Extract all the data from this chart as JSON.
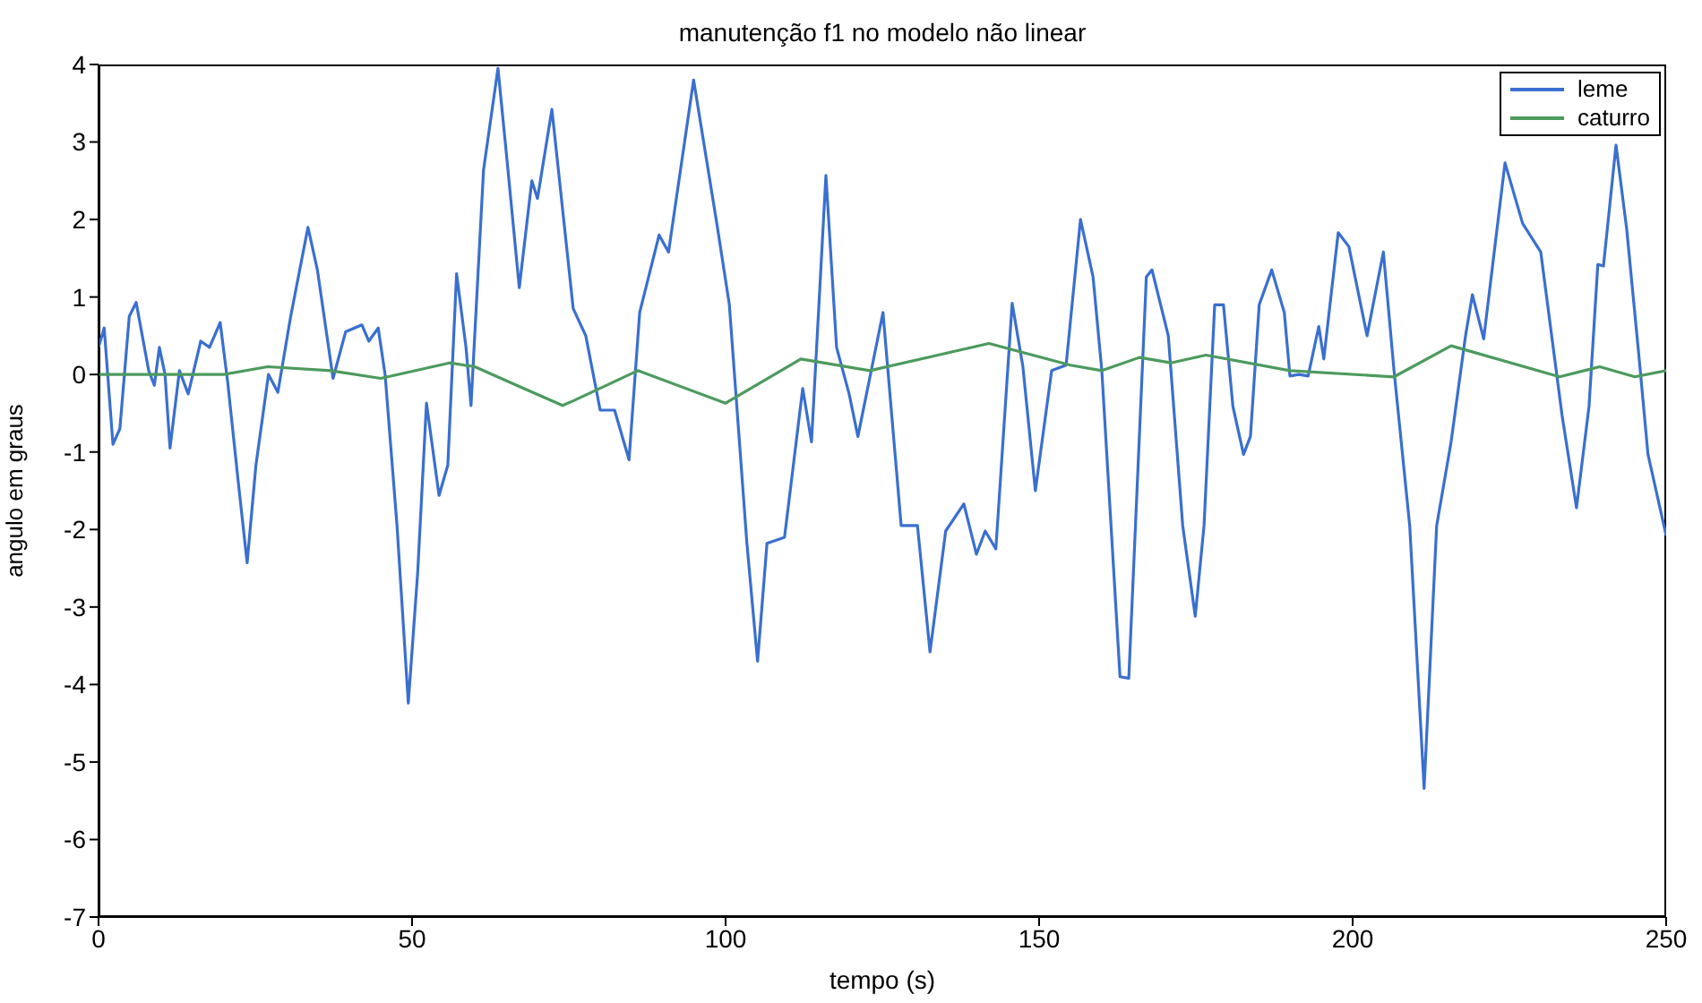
{
  "chart_data": {
    "type": "line",
    "title": "manutenção f1 no modelo não linear",
    "xlabel": "tempo (s)",
    "ylabel": "angulo em graus",
    "xlim": [
      0,
      250
    ],
    "xticks": [
      0,
      50,
      100,
      150,
      200,
      250
    ],
    "ylim": [
      -7,
      4
    ],
    "yticks": [
      -7,
      -6,
      -5,
      -4,
      -3,
      -2,
      -1,
      0,
      1,
      2,
      3,
      4
    ],
    "legend": "top right",
    "grid": false,
    "marker": "none",
    "line_style": "solid",
    "series": [
      {
        "name": "leme",
        "color": "#3a6fd0",
        "x": [
          0,
          0.9,
          2.3,
          3.4,
          4.9,
          6,
          8,
          8.9,
          9.7,
          10.6,
          11.4,
          12.9,
          14.3,
          16.3,
          17.7,
          19.4,
          20.6,
          22.3,
          23.7,
          25.1,
          27.1,
          28.6,
          30.6,
          33.4,
          34.9,
          37.4,
          39.4,
          42,
          43.1,
          44.6,
          45.7,
          47.6,
          49.4,
          50.9,
          52.3,
          54.3,
          55.7,
          57.1,
          58.6,
          59.4,
          61.4,
          63.7,
          65.1,
          67.1,
          69.1,
          70,
          72.3,
          75.7,
          77.7,
          80,
          82.3,
          84.6,
          86.3,
          89.4,
          90.9,
          94.9,
          98.6,
          100.6,
          103.4,
          105.1,
          106.6,
          109.4,
          112.3,
          113.7,
          116,
          117.7,
          119.7,
          121.1,
          125.1,
          128,
          130.6,
          132.6,
          135.1,
          138,
          140,
          141.4,
          143.1,
          145.7,
          147.4,
          149.4,
          152,
          154.3,
          156.6,
          158.6,
          160,
          162.9,
          164.3,
          167.1,
          168,
          170.6,
          172.9,
          174.9,
          176.3,
          178,
          179.4,
          180.9,
          182.6,
          183.7,
          185.1,
          187.1,
          189.1,
          190,
          191.4,
          192.9,
          194.6,
          195.4,
          197.7,
          199.4,
          202.3,
          204.9,
          206.6,
          209.1,
          211.4,
          213.4,
          215.7,
          218,
          219.1,
          220.9,
          224.3,
          227.1,
          230,
          233.4,
          235.7,
          237.7,
          239.1,
          240,
          242,
          243.7,
          245.7,
          247.1,
          250
        ],
        "values": [
          0.35,
          0.6,
          -0.9,
          -0.7,
          0.75,
          0.93,
          0.05,
          -0.14,
          0.35,
          0,
          -0.95,
          0.05,
          -0.25,
          0.43,
          0.35,
          0.67,
          -0.1,
          -1.4,
          -2.43,
          -1.17,
          0,
          -0.23,
          0.73,
          1.9,
          1.35,
          -0.05,
          0.55,
          0.64,
          0.43,
          0.6,
          0,
          -1.95,
          -4.24,
          -2.55,
          -0.37,
          -1.56,
          -1.17,
          1.3,
          0.35,
          -0.4,
          2.64,
          3.95,
          2.8,
          1.12,
          2.5,
          2.27,
          3.42,
          0.85,
          0.5,
          -0.46,
          -0.46,
          -1.1,
          0.8,
          1.8,
          1.58,
          3.8,
          1.95,
          0.9,
          -2.18,
          -3.7,
          -2.18,
          -2.1,
          -0.18,
          -0.87,
          2.57,
          0.35,
          -0.25,
          -0.8,
          0.8,
          -1.95,
          -1.95,
          -3.58,
          -2.02,
          -1.67,
          -2.32,
          -2.02,
          -2.25,
          0.92,
          0.11,
          -1.5,
          0.05,
          0.12,
          2,
          1.26,
          0.05,
          -3.9,
          -3.92,
          1.26,
          1.35,
          0.5,
          -1.95,
          -3.12,
          -1.95,
          0.9,
          0.9,
          -0.41,
          -1.03,
          -0.8,
          0.9,
          1.35,
          0.8,
          -0.02,
          0,
          -0.02,
          0.62,
          0.2,
          1.83,
          1.65,
          0.5,
          1.58,
          0.05,
          -1.95,
          -5.34,
          -1.95,
          -0.87,
          0.5,
          1.03,
          0.46,
          2.73,
          1.95,
          1.58,
          -0.53,
          -1.72,
          -0.41,
          1.42,
          1.4,
          2.96,
          1.88,
          0.2,
          -1.03,
          -2.08
        ]
      },
      {
        "name": "caturro",
        "color": "#4c9a5e",
        "x": [
          0,
          10,
          20,
          27,
          37,
          45,
          56,
          60,
          67,
          74,
          75.7,
          86,
          100,
          112,
          123,
          142,
          155,
          160,
          166,
          171,
          176.6,
          190,
          206.6,
          215.7,
          233,
          239.4,
          245,
          250
        ],
        "values": [
          0,
          0,
          0,
          0.1,
          0.05,
          -0.05,
          0.15,
          0.1,
          -0.15,
          -0.4,
          -0.34,
          0.05,
          -0.37,
          0.2,
          0.05,
          0.4,
          0.12,
          0.05,
          0.22,
          0.15,
          0.25,
          0.05,
          -0.03,
          0.37,
          -0.03,
          0.1,
          -0.03,
          0.05
        ]
      }
    ]
  }
}
